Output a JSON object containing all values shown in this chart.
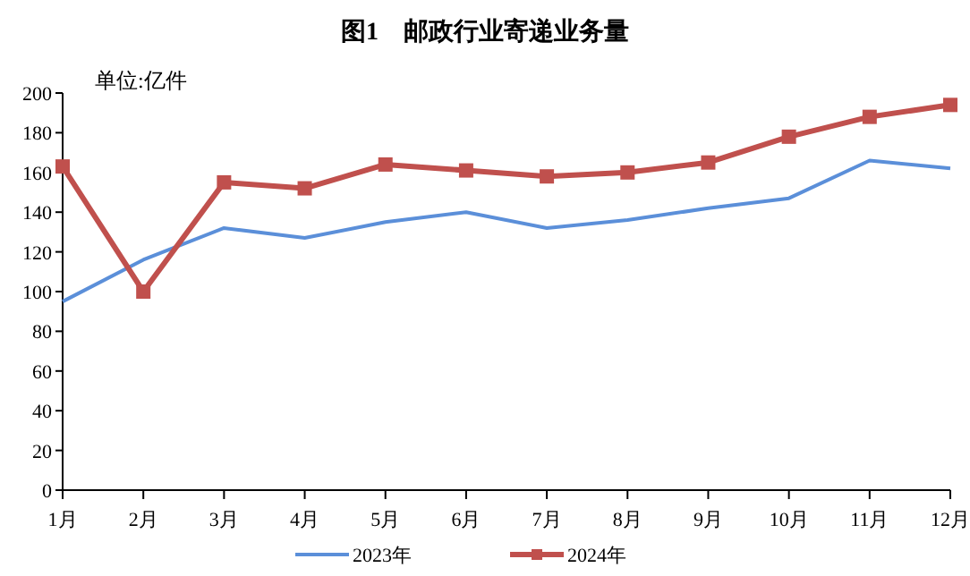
{
  "chart_data": {
    "type": "line",
    "title": "图1　邮政行业寄递业务量",
    "annotations": [
      "单位:亿件"
    ],
    "categories": [
      "1月",
      "2月",
      "3月",
      "4月",
      "5月",
      "6月",
      "7月",
      "8月",
      "9月",
      "10月",
      "11月",
      "12月"
    ],
    "series": [
      {
        "name": "2023年",
        "color": "#5b8fd9",
        "marker": "none",
        "values": [
          95,
          116,
          132,
          127,
          135,
          140,
          132,
          136,
          142,
          147,
          166,
          162
        ]
      },
      {
        "name": "2024年",
        "color": "#c0504d",
        "marker": "square",
        "values": [
          163,
          100,
          155,
          152,
          164,
          161,
          158,
          160,
          165,
          178,
          188,
          194
        ]
      }
    ],
    "ylim": [
      0,
      200
    ],
    "yticks": [
      0,
      20,
      40,
      60,
      80,
      100,
      120,
      140,
      160,
      180,
      200
    ],
    "grid": false,
    "legend": "bottom"
  }
}
